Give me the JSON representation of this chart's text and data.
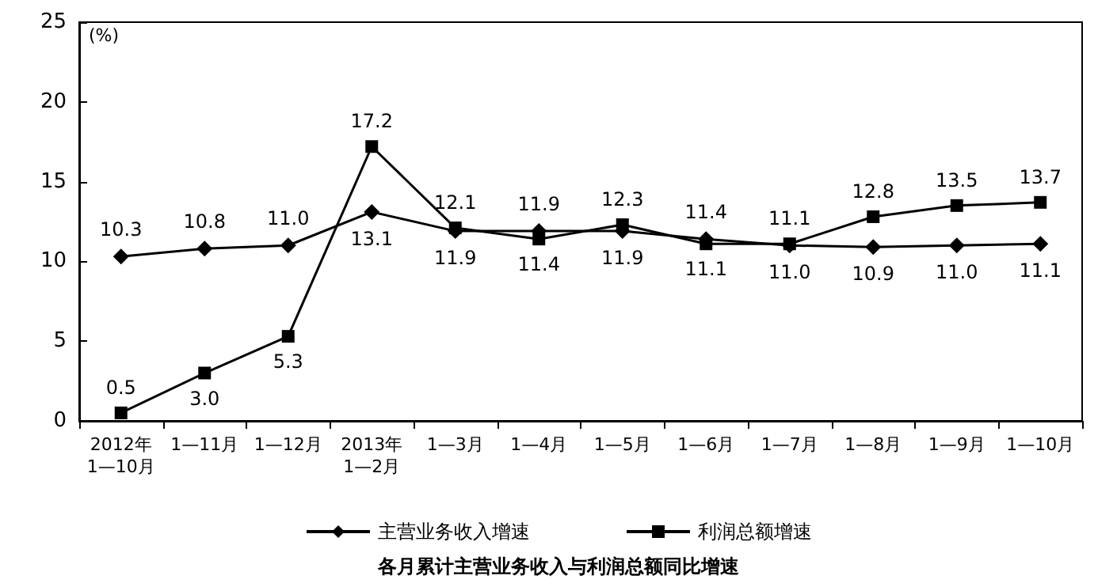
{
  "chart_data": {
    "type": "line",
    "title": "各月累计主营业务收入与利润总额同比增速",
    "ylabel": "(%)",
    "categories": [
      "2012年\n1—10月",
      "1—11月",
      "1—12月",
      "2013年\n1—2月",
      "1—3月",
      "1—4月",
      "1—5月",
      "1—6月",
      "1—7月",
      "1—8月",
      "1—9月",
      "1—10月"
    ],
    "series": [
      {
        "name": "主营业务收入增速",
        "color": "#000000",
        "marker": "diamond",
        "values": [
          10.3,
          10.8,
          11.0,
          13.1,
          11.9,
          11.9,
          11.9,
          11.4,
          11.0,
          10.9,
          11.0,
          11.1
        ],
        "value_labels": [
          "10.3",
          "10.8",
          "11.0",
          "13.1",
          "11.9",
          "11.9",
          "11.9",
          "11.4",
          "11.0",
          "10.9",
          "11.0",
          "11.1"
        ]
      },
      {
        "name": "利润总额增速",
        "color": "#000000",
        "marker": "square",
        "values": [
          0.5,
          3.0,
          5.3,
          17.2,
          12.1,
          11.4,
          12.3,
          11.1,
          11.1,
          12.8,
          13.5,
          13.7
        ],
        "value_labels": [
          "0.5",
          "3.0",
          "5.3",
          "17.2",
          "12.1",
          "11.4",
          "12.3",
          "11.1",
          "11.1",
          "12.8",
          "13.5",
          "13.7"
        ]
      }
    ],
    "ylim": [
      0,
      25
    ],
    "yticks": [
      0,
      5,
      10,
      15,
      20,
      25
    ],
    "grid": false,
    "legend": "bottom"
  }
}
